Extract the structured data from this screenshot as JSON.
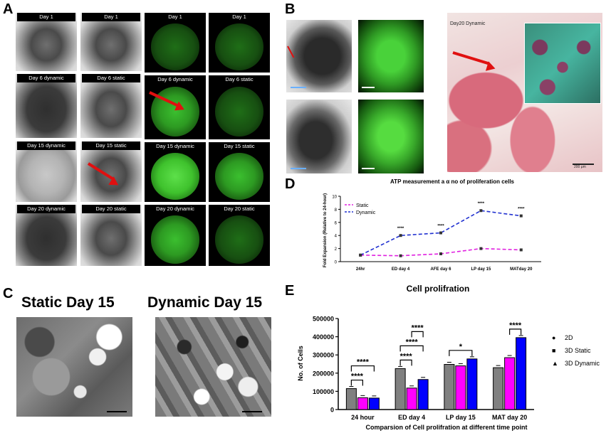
{
  "panel_letters": {
    "a": "A",
    "b": "B",
    "c": "C",
    "d": "D",
    "e": "E"
  },
  "panel_a": {
    "labels": {
      "bf_1_1": "Day 1",
      "bf_1_2": "Day 1",
      "bf_2_1": "Day 6 dynamic",
      "bf_2_2": "Day 6 static",
      "bf_3_1": "Day 15 dynamic",
      "bf_3_2": "Day 15 static",
      "bf_4_1": "Day 20 dynamic",
      "bf_4_2": "Day 20 static",
      "fl_1_1": "Day 1",
      "fl_1_2": "Day 1",
      "fl_2_1": "Day 6 dynamic",
      "fl_2_2": "Day 6 static",
      "fl_3_1": "Day 15 dynamic",
      "fl_3_2": "Day 15 static",
      "fl_4_1": "Day 20 dynamic",
      "fl_4_2": "Day 20 static"
    }
  },
  "panel_b": {
    "he_label": "Day20 Dynamic",
    "scale_label": "200 μm"
  },
  "panel_c": {
    "static_title": "Static Day 15",
    "dynamic_title": "Dynamic Day 15"
  },
  "chart_data": [
    {
      "type": "line",
      "title": "ATP measurement a α no of proliferation cells",
      "ylabel": "Fold Expansion (Relative to 24-hour)",
      "categories": [
        "24hr",
        "ED day 4",
        "AFE day 6",
        "LP day 15",
        "MATday 20"
      ],
      "ylim": [
        0,
        10
      ],
      "yticks": [
        0,
        2,
        4,
        6,
        8,
        10
      ],
      "legend": "top-left",
      "series": [
        {
          "name": "Static",
          "values": [
            1.0,
            0.9,
            1.2,
            2.0,
            1.8
          ],
          "color": "#e020e0"
        },
        {
          "name": "Dynamic",
          "values": [
            1.0,
            4.0,
            4.4,
            7.8,
            7.0
          ],
          "color": "#2030d0"
        }
      ],
      "significance": [
        "",
        "****",
        "****",
        "****",
        "****"
      ]
    },
    {
      "type": "bar",
      "title": "Cell prolifration",
      "xlabel": "Comparsion of Cell prolifration at different time point",
      "ylabel": "No. of Cells",
      "categories": [
        "24 hour",
        "ED day 4",
        "LP day 15",
        "MAT day 20"
      ],
      "ylim": [
        0,
        500000
      ],
      "yticks": [
        "0",
        "100000",
        "200000",
        "300000",
        "400000",
        "500000"
      ],
      "series": [
        {
          "name": "2D",
          "marker": "●",
          "color": "#808080",
          "values": [
            115000,
            225000,
            248000,
            230000
          ]
        },
        {
          "name": "3D Static",
          "marker": "■",
          "color": "#ff00ff",
          "values": [
            65000,
            118000,
            240000,
            285000
          ]
        },
        {
          "name": "3D Dynamic",
          "marker": "▲",
          "color": "#0000ff",
          "values": [
            63000,
            165000,
            278000,
            395000
          ]
        }
      ],
      "brackets": [
        {
          "group": 0,
          "from": 0,
          "to": 1,
          "label": "****"
        },
        {
          "group": 0,
          "from": 0,
          "to": 2,
          "label": "****"
        },
        {
          "group": 1,
          "from": 0,
          "to": 1,
          "label": "****"
        },
        {
          "group": 1,
          "from": 0,
          "to": 2,
          "label": "****"
        },
        {
          "group": 1,
          "from": 1,
          "to": 2,
          "label": "****"
        },
        {
          "group": 2,
          "from": 0,
          "to": 2,
          "label": "*"
        },
        {
          "group": 3,
          "from": 1,
          "to": 2,
          "label": "****"
        }
      ]
    }
  ]
}
